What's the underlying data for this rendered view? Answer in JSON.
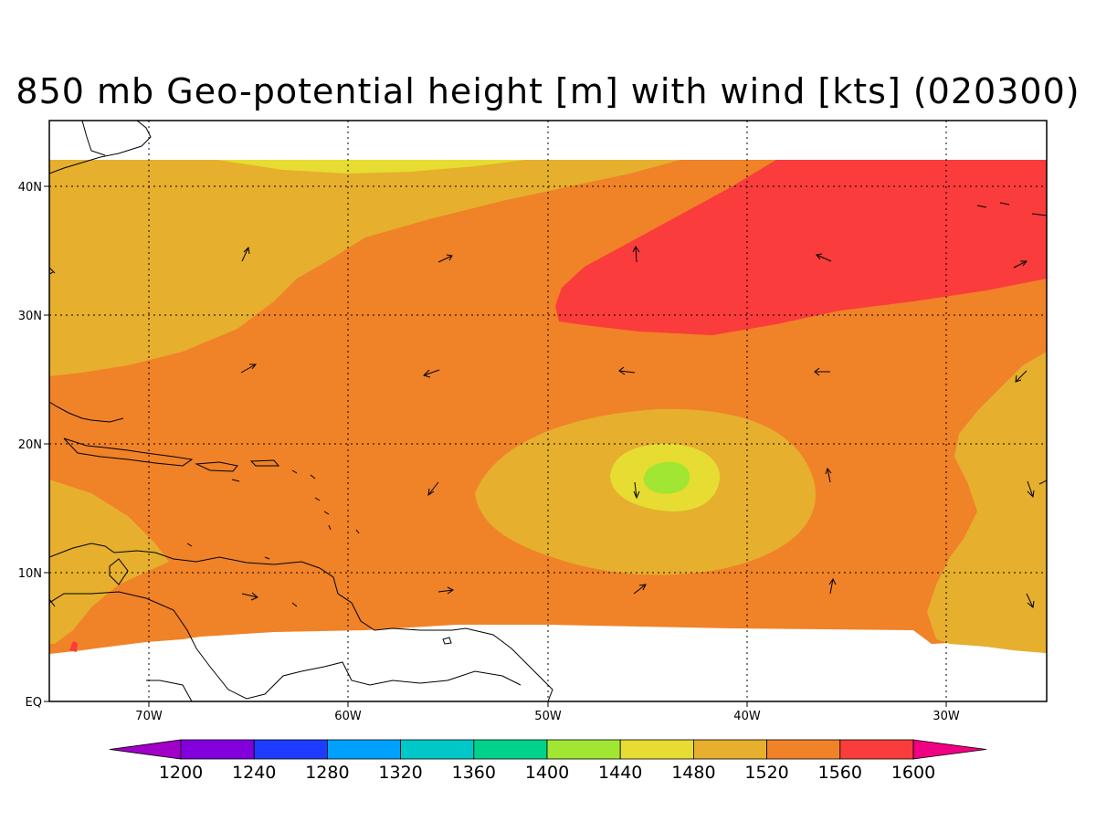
{
  "title": "850 mb Geo-potential height [m] with wind [kts] (020300)",
  "map": {
    "lon_labels": [
      "70W",
      "60W",
      "50W",
      "40W",
      "30W"
    ],
    "lat_labels": [
      "EQ",
      "10N",
      "20N",
      "30N",
      "40N"
    ]
  },
  "colorbar": {
    "labels": [
      "1200",
      "1240",
      "1280",
      "1320",
      "1360",
      "1400",
      "1440",
      "1480",
      "1520",
      "1560",
      "1600"
    ],
    "colors": [
      "#a000c8",
      "#8200dc",
      "#1e3cff",
      "#00a0ff",
      "#00c8c8",
      "#00d28c",
      "#a0e632",
      "#e6dc32",
      "#e6af2d",
      "#f08228",
      "#fa3c3c",
      "#f00082"
    ]
  },
  "colors": {
    "h1480": "#e6dc32",
    "h1440": "#a0e632",
    "h1520": "#e6af2d",
    "h1560": "#f08228",
    "h1600": "#fa3c3c"
  }
}
